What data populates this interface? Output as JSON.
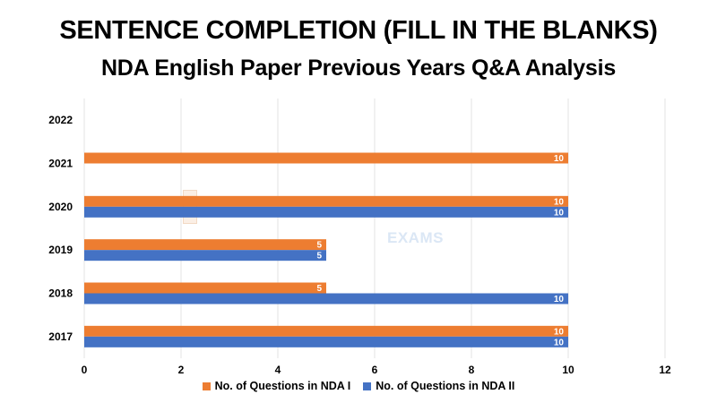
{
  "title": "SENTENCE COMPLETION (FILL IN THE BLANKS)",
  "subtitle": "NDA English Paper Previous Years Q&A Analysis",
  "watermark": "EXAMS",
  "chart_data": {
    "type": "bar",
    "orientation": "horizontal",
    "categories": [
      "2017",
      "2018",
      "2019",
      "2020",
      "2021",
      "2022"
    ],
    "series": [
      {
        "name": "No. of Questions in NDA I",
        "color": "#ED7D31",
        "values": [
          10,
          5,
          5,
          10,
          10,
          null
        ]
      },
      {
        "name": "No. of Questions in NDA II",
        "color": "#4472C4",
        "values": [
          10,
          10,
          5,
          10,
          null,
          null
        ]
      }
    ],
    "x_ticks": [
      0,
      2,
      4,
      6,
      8,
      10,
      12
    ],
    "xlim": [
      0,
      12
    ],
    "grid": true,
    "legend": "bottom",
    "data_labels": true
  }
}
